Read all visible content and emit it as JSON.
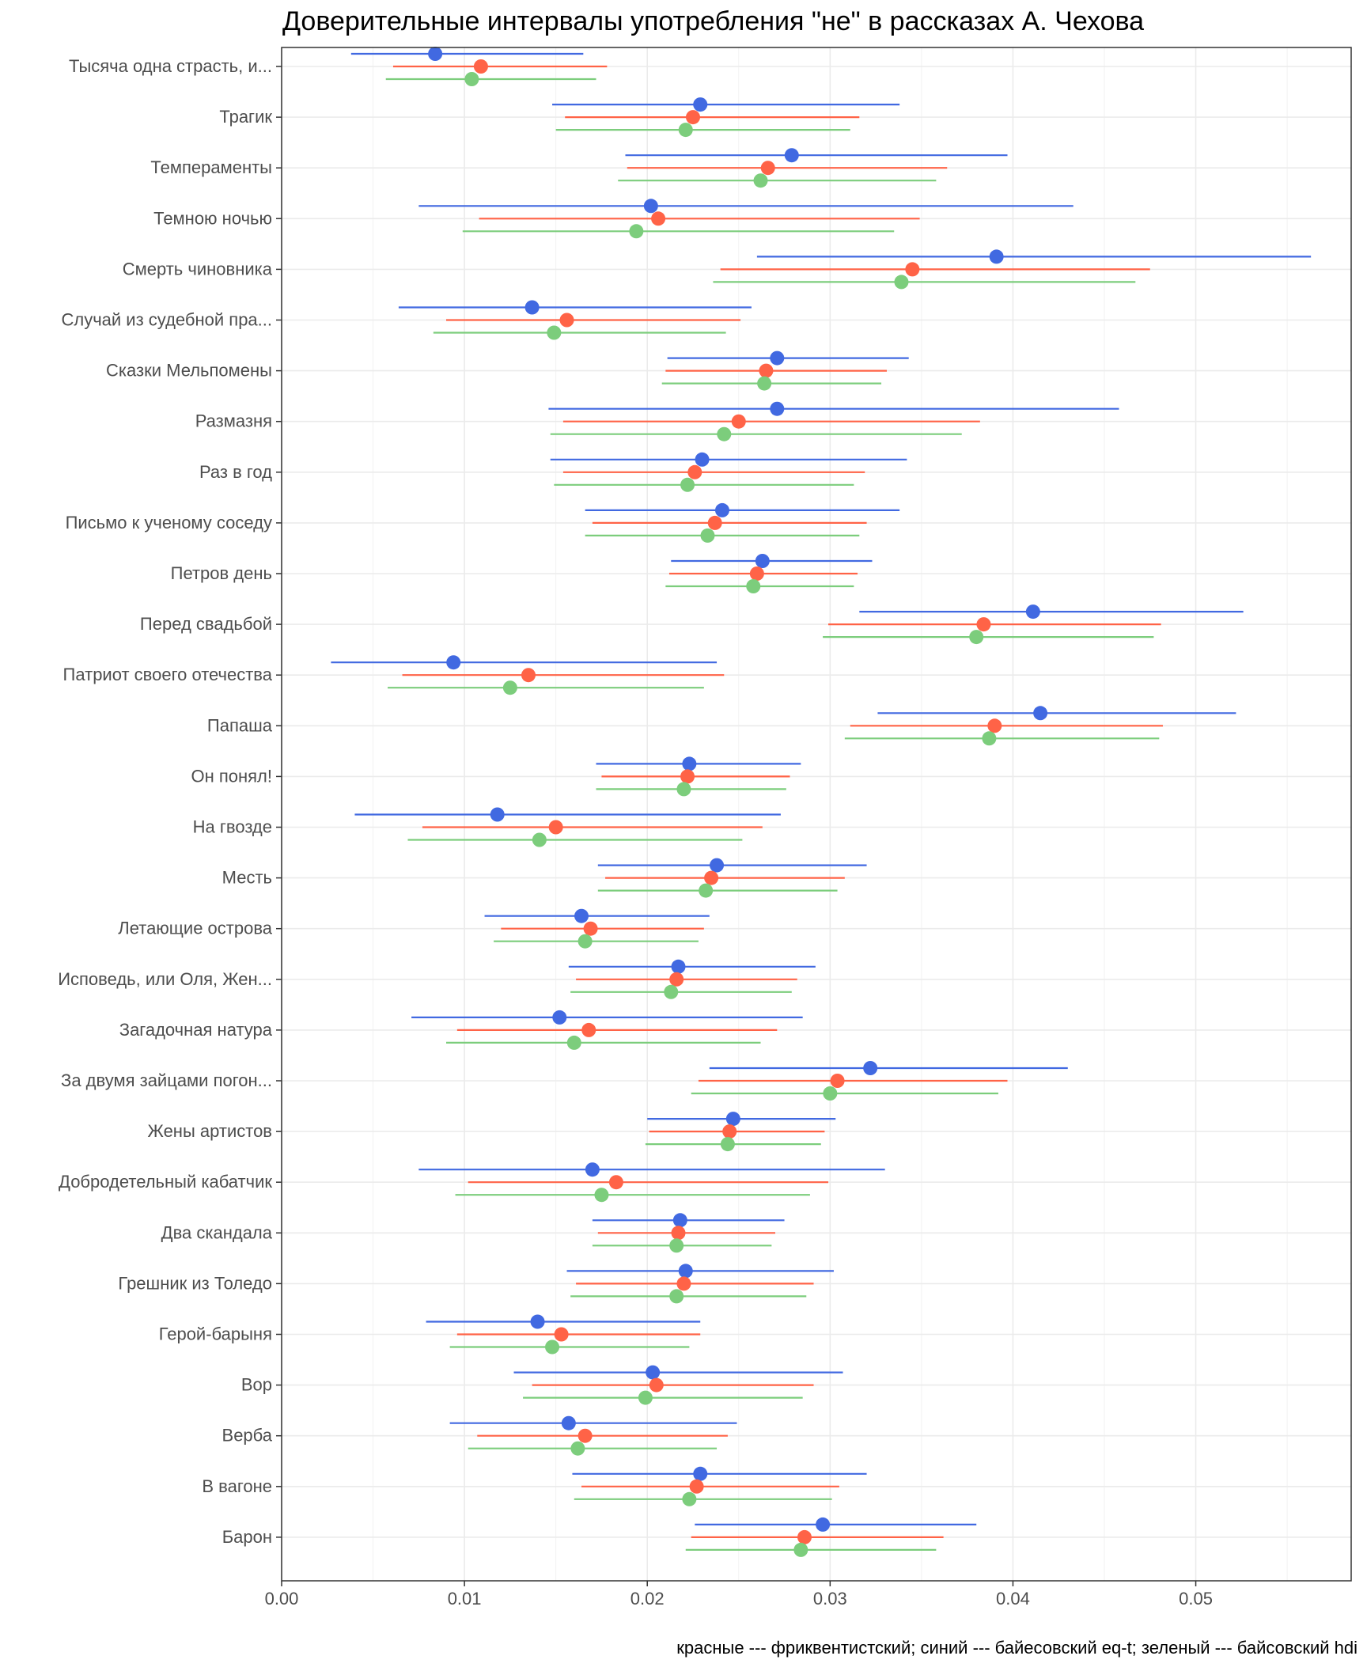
{
  "chart_data": {
    "type": "scatter",
    "title": "Доверительные интервалы употребления \"не\" в рассказах А. Чехова",
    "xlabel": "",
    "ylabel": "",
    "xlim": [
      0,
      0.0585
    ],
    "x_ticks": [
      "0.00",
      "0.01",
      "0.02",
      "0.03",
      "0.04",
      "0.05"
    ],
    "x_tick_values": [
      0,
      0.01,
      0.02,
      0.03,
      0.04,
      0.05
    ],
    "caption": "красные --- фриквентистский; синий --- байесовский eq-t; зеленый --- байсовский hdi",
    "grid": true,
    "legend": "none",
    "series_colors": {
      "blue": "#4169e1",
      "red": "#ff6347",
      "green": "#7ccd7c"
    },
    "categories": [
      "Тысяча одна страсть, и...",
      "Трагик",
      "Темпераменты",
      "Темною ночью",
      "Смерть чиновника",
      "Случай из судебной пра...",
      "Сказки Мельпомены",
      "Размазня",
      "Раз в год",
      "Письмо к ученому соседу",
      "Петров день",
      "Перед свадьбой",
      "Патриот своего отечества",
      "Папаша",
      "Он понял!",
      "На гвозде",
      "Месть",
      "Летающие острова",
      "Исповедь, или Оля, Жен...",
      "Загадочная натура",
      "За двумя зайцами погон...",
      "Жены артистов",
      "Добродетельный кабатчик",
      "Два скандала",
      "Грешник из Толедо",
      "Герой-барыня",
      "Вор",
      "Верба",
      "В вагоне",
      "Барон"
    ],
    "series": [
      {
        "color": "blue",
        "point": [
          0.0084,
          0.0229,
          0.0279,
          0.0202,
          0.0391,
          0.0137,
          0.0271,
          0.0271,
          0.023,
          0.0241,
          0.0263,
          0.0411,
          0.0094,
          0.0415,
          0.0223,
          0.0118,
          0.0238,
          0.0164,
          0.0217,
          0.0152,
          0.0322,
          0.0247,
          0.017,
          0.0218,
          0.0221,
          0.014,
          0.0203,
          0.0157,
          0.0229,
          0.0296
        ],
        "low": [
          0.0038,
          0.0148,
          0.0188,
          0.0075,
          0.026,
          0.0064,
          0.0211,
          0.0146,
          0.0147,
          0.0166,
          0.0213,
          0.0316,
          0.0027,
          0.0326,
          0.0172,
          0.004,
          0.0173,
          0.0111,
          0.0157,
          0.0071,
          0.0234,
          0.02,
          0.0075,
          0.017,
          0.0156,
          0.0079,
          0.0127,
          0.0092,
          0.0159,
          0.0226
        ],
        "high": [
          0.0165,
          0.0338,
          0.0397,
          0.0433,
          0.0563,
          0.0257,
          0.0343,
          0.0458,
          0.0342,
          0.0338,
          0.0323,
          0.0526,
          0.0238,
          0.0522,
          0.0284,
          0.0273,
          0.032,
          0.0234,
          0.0292,
          0.0285,
          0.043,
          0.0303,
          0.033,
          0.0275,
          0.0302,
          0.0229,
          0.0307,
          0.0249,
          0.032,
          0.038
        ]
      },
      {
        "color": "red",
        "point": [
          0.0109,
          0.0225,
          0.0266,
          0.0206,
          0.0345,
          0.0156,
          0.0265,
          0.025,
          0.0226,
          0.0237,
          0.026,
          0.0384,
          0.0135,
          0.039,
          0.0222,
          0.015,
          0.0235,
          0.0169,
          0.0216,
          0.0168,
          0.0304,
          0.0245,
          0.0183,
          0.0217,
          0.022,
          0.0153,
          0.0205,
          0.0166,
          0.0227,
          0.0286
        ],
        "low": [
          0.0061,
          0.0155,
          0.0189,
          0.0108,
          0.024,
          0.009,
          0.021,
          0.0154,
          0.0154,
          0.017,
          0.0212,
          0.0299,
          0.0066,
          0.0311,
          0.0175,
          0.0077,
          0.0177,
          0.012,
          0.0161,
          0.0096,
          0.0228,
          0.0201,
          0.0102,
          0.0173,
          0.0161,
          0.0096,
          0.0137,
          0.0107,
          0.0164,
          0.0224
        ],
        "high": [
          0.0178,
          0.0316,
          0.0364,
          0.0349,
          0.0475,
          0.0251,
          0.0331,
          0.0382,
          0.0319,
          0.032,
          0.0315,
          0.0481,
          0.0242,
          0.0482,
          0.0278,
          0.0263,
          0.0308,
          0.0231,
          0.0282,
          0.0271,
          0.0397,
          0.0297,
          0.0299,
          0.027,
          0.0291,
          0.0229,
          0.0291,
          0.0244,
          0.0305,
          0.0362
        ]
      },
      {
        "color": "green",
        "point": [
          0.0104,
          0.0221,
          0.0262,
          0.0194,
          0.0339,
          0.0149,
          0.0264,
          0.0242,
          0.0222,
          0.0233,
          0.0258,
          0.038,
          0.0125,
          0.0387,
          0.022,
          0.0141,
          0.0232,
          0.0166,
          0.0213,
          0.016,
          0.03,
          0.0244,
          0.0175,
          0.0216,
          0.0216,
          0.0148,
          0.0199,
          0.0162,
          0.0223,
          0.0284
        ],
        "low": [
          0.0057,
          0.015,
          0.0184,
          0.0099,
          0.0236,
          0.0083,
          0.0208,
          0.0147,
          0.0149,
          0.0166,
          0.021,
          0.0296,
          0.0058,
          0.0308,
          0.0172,
          0.0069,
          0.0173,
          0.0116,
          0.0158,
          0.009,
          0.0224,
          0.0199,
          0.0095,
          0.017,
          0.0158,
          0.0092,
          0.0132,
          0.0102,
          0.016,
          0.0221
        ],
        "high": [
          0.0172,
          0.0311,
          0.0358,
          0.0335,
          0.0467,
          0.0243,
          0.0328,
          0.0372,
          0.0313,
          0.0316,
          0.0313,
          0.0477,
          0.0231,
          0.048,
          0.0276,
          0.0252,
          0.0304,
          0.0228,
          0.0279,
          0.0262,
          0.0392,
          0.0295,
          0.0289,
          0.0268,
          0.0287,
          0.0223,
          0.0285,
          0.0238,
          0.0301,
          0.0358
        ]
      }
    ]
  }
}
